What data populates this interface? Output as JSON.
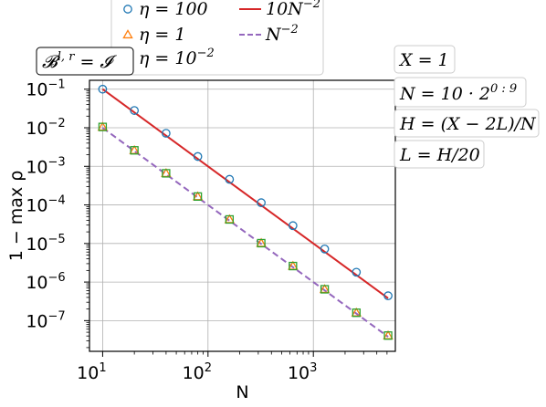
{
  "chart_data": {
    "type": "scatter",
    "title": "",
    "xlabel": "N",
    "ylabel": "1 − max ρ",
    "xscale": "log",
    "yscale": "log",
    "xlim": [
      7.5,
      6000
    ],
    "ylim": [
      1.6e-08,
      0.17
    ],
    "grid": true,
    "legend": "top, outside axes",
    "x": [
      10,
      20,
      40,
      80,
      160,
      320,
      640,
      1280,
      2560,
      5120
    ],
    "x_ticks": [
      {
        "value": 10,
        "base": "10",
        "exp": "1"
      },
      {
        "value": 100,
        "base": "10",
        "exp": "2"
      },
      {
        "value": 1000,
        "base": "10",
        "exp": "3"
      }
    ],
    "y_ticks": [
      {
        "value": 0.1,
        "base": "10",
        "exp": "−1"
      },
      {
        "value": 0.01,
        "base": "10",
        "exp": "−2"
      },
      {
        "value": 0.001,
        "base": "10",
        "exp": "−3"
      },
      {
        "value": 0.0001,
        "base": "10",
        "exp": "−4"
      },
      {
        "value": 1e-05,
        "base": "10",
        "exp": "−5"
      },
      {
        "value": 1e-06,
        "base": "10",
        "exp": "−6"
      },
      {
        "value": 1e-07,
        "base": "10",
        "exp": "−7"
      }
    ],
    "series": [
      {
        "name": "η = 100",
        "marker": "circle",
        "color": "#1f77b4",
        "values": [
          0.1,
          0.028,
          0.0072,
          0.0018,
          0.00046,
          0.000114,
          2.9e-05,
          7.2e-06,
          1.8e-06,
          4.4e-07
        ]
      },
      {
        "name": "η = 1",
        "marker": "triangle",
        "color": "#ff7f0e",
        "values": [
          0.0105,
          0.0026,
          0.00066,
          0.000165,
          4.2e-05,
          1.02e-05,
          2.6e-06,
          6.5e-07,
          1.6e-07,
          4.1e-08
        ]
      },
      {
        "name": "η = 10⁻²",
        "marker": "square",
        "color": "#2ca02c",
        "values": [
          0.0105,
          0.0026,
          0.00066,
          0.000165,
          4.2e-05,
          1.02e-05,
          2.6e-06,
          6.5e-07,
          1.6e-07,
          4.1e-08
        ]
      }
    ],
    "reference_lines": [
      {
        "name": "10N⁻²",
        "coefficient": 10,
        "power": -2,
        "color": "#d62728",
        "style": "solid"
      },
      {
        "name": "N⁻²",
        "coefficient": 1,
        "power": -2,
        "color": "#9467bd",
        "style": "dashed"
      }
    ],
    "legend_entries": [
      {
        "label": "η = 100",
        "kind": "marker",
        "series": 0
      },
      {
        "label": "η = 1",
        "kind": "marker",
        "series": 1
      },
      {
        "label": "η = 10",
        "sup": "−2",
        "kind": "marker",
        "series": 2
      },
      {
        "label": "10N",
        "sup": "−2",
        "kind": "line",
        "line": 0
      },
      {
        "label": "N",
        "sup": "−2",
        "kind": "line",
        "line": 1
      }
    ],
    "annotations": [
      {
        "id": "bcond",
        "text": "𝓑",
        "sup": "l, r",
        "suffix": " = 𝓘"
      },
      {
        "id": "X",
        "text": "X = 1"
      },
      {
        "id": "N",
        "text": "N = 10 · 2",
        "sup": "0 : 9"
      },
      {
        "id": "H",
        "text": "H = (X − 2L)/N"
      },
      {
        "id": "L",
        "text": "L = H/20"
      }
    ]
  }
}
